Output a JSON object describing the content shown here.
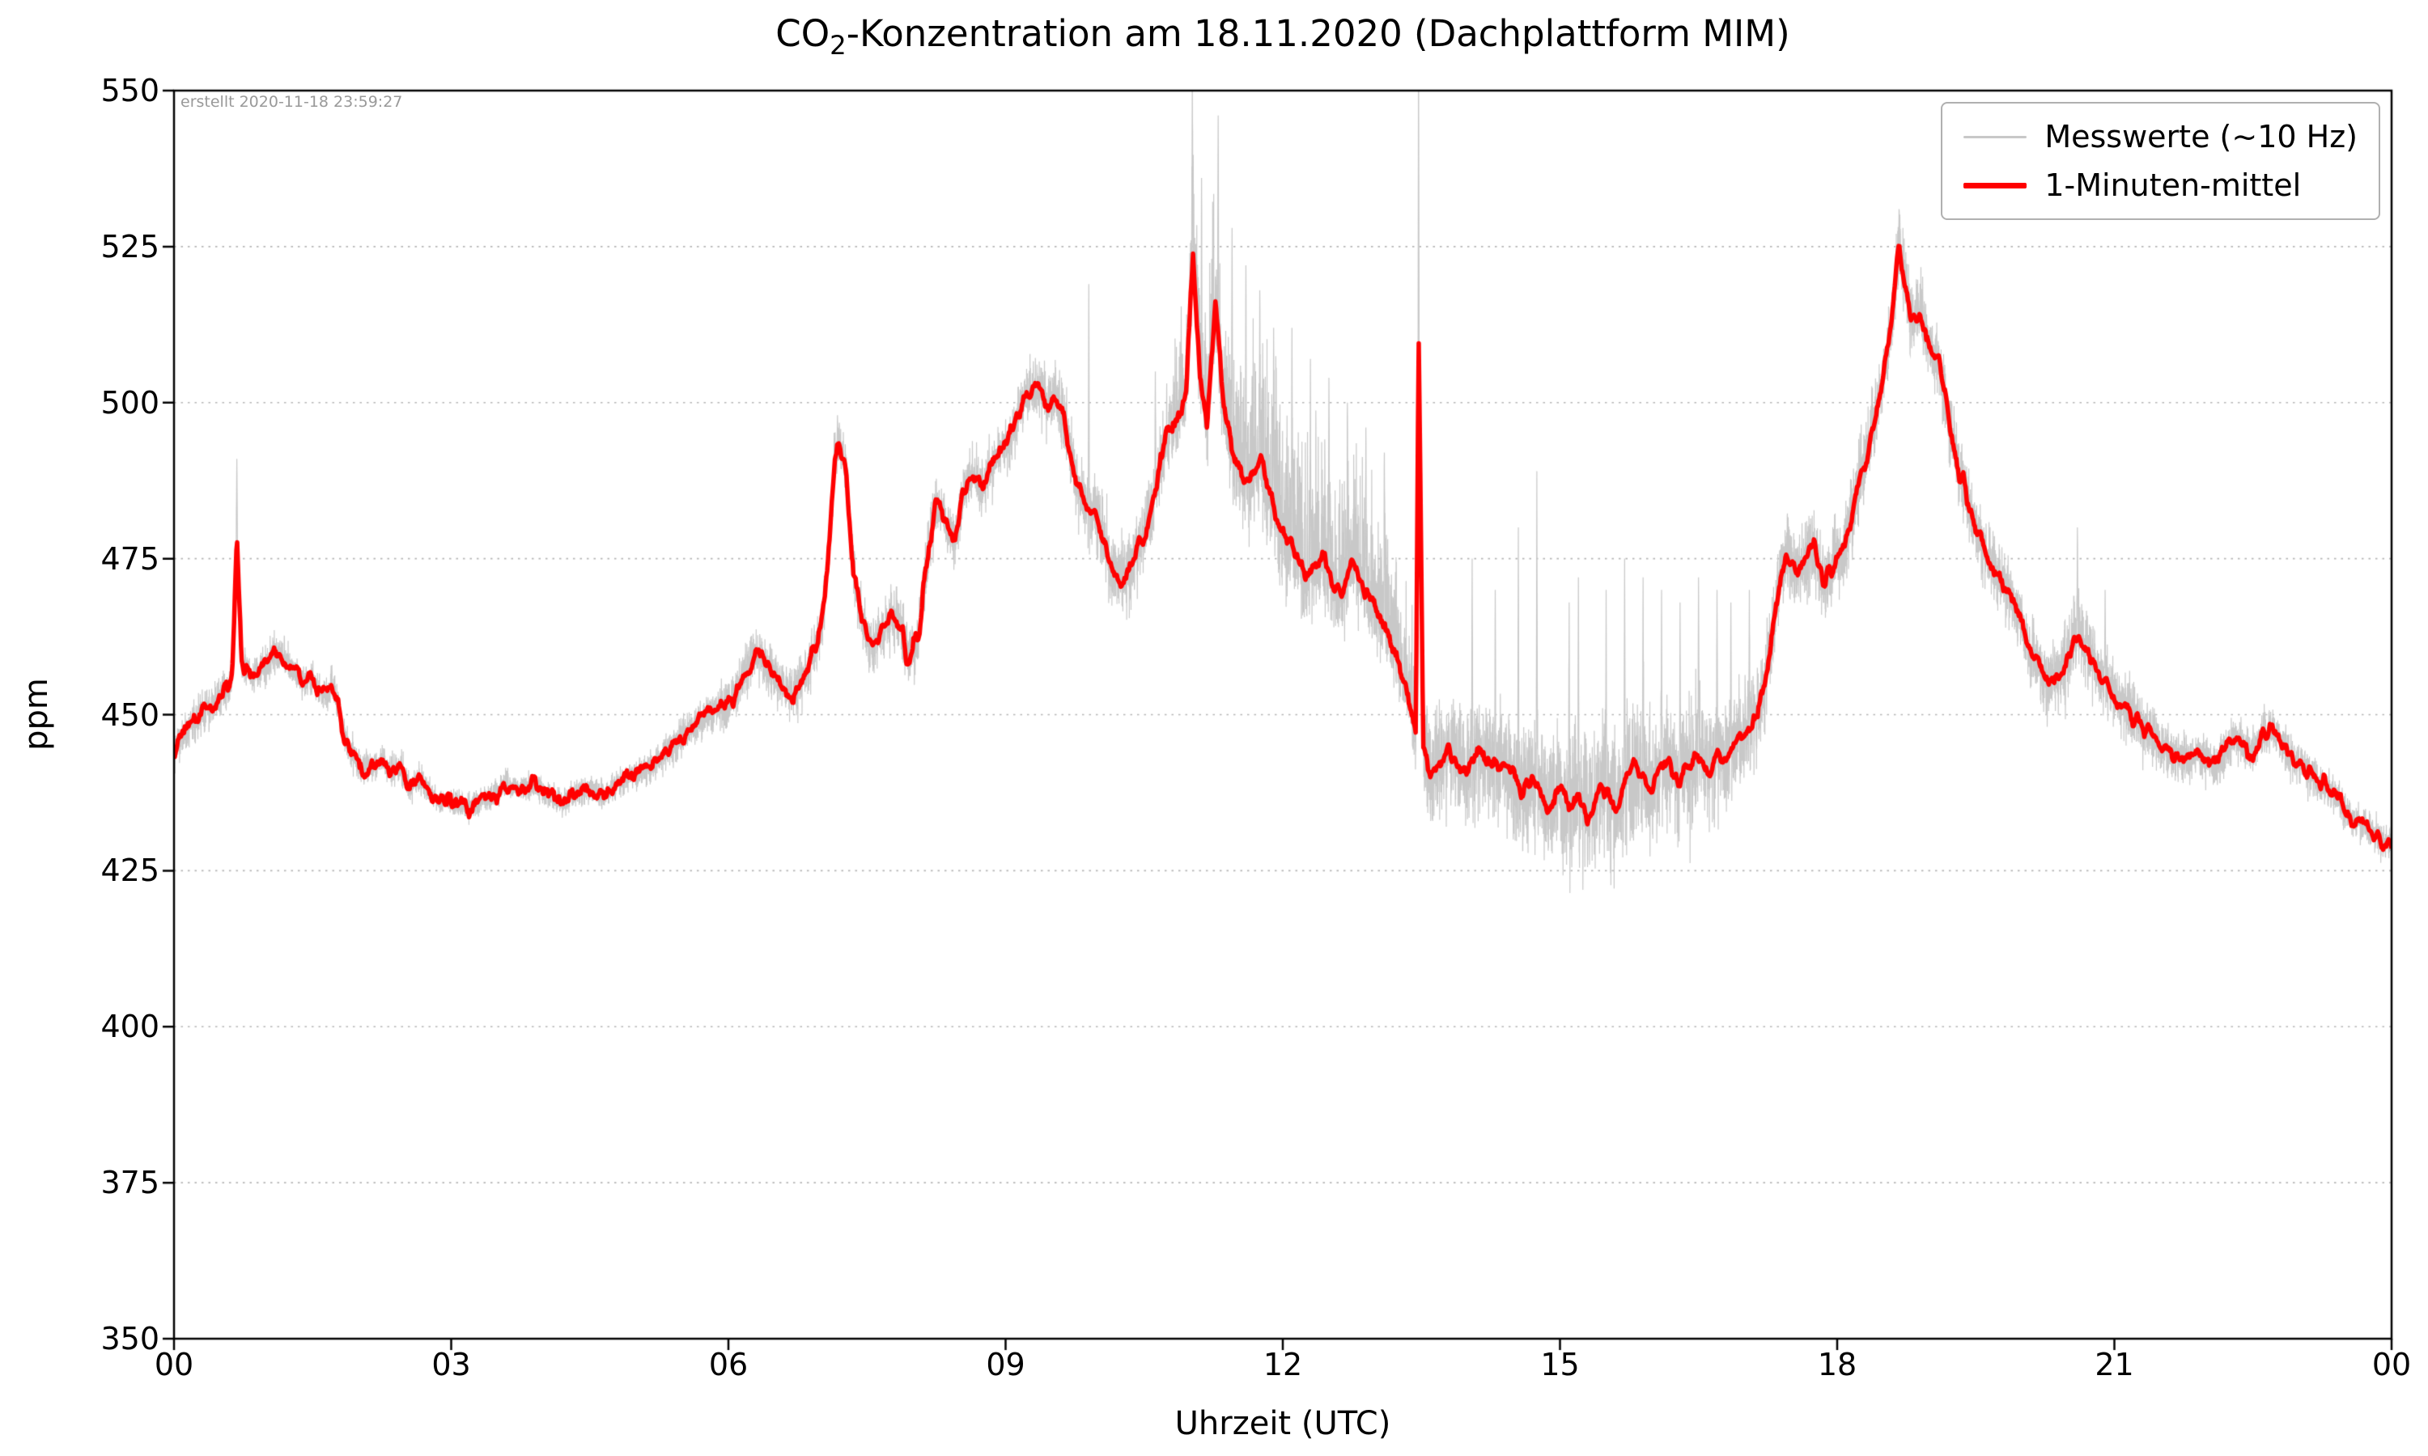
{
  "chart_data": {
    "type": "line",
    "title": "CO₂-Konzentration am 18.11.2020 (Dachplattform MIM)",
    "title_parts": {
      "prefix": "CO",
      "sub": "2",
      "rest": "-Konzentration am 18.11.2020 (Dachplattform MIM)"
    },
    "xlabel": "Uhrzeit (UTC)",
    "ylabel": "ppm",
    "annotation": "erstellt 2020-11-18 23:59:27",
    "xlim": [
      0,
      24
    ],
    "ylim": [
      350,
      550
    ],
    "xticks": {
      "values": [
        0,
        3,
        6,
        9,
        12,
        15,
        18,
        21,
        24
      ],
      "labels": [
        "00",
        "03",
        "06",
        "09",
        "12",
        "15",
        "18",
        "21",
        "00"
      ]
    },
    "yticks": {
      "values": [
        350,
        375,
        400,
        425,
        450,
        475,
        500,
        525,
        550
      ],
      "labels": [
        "350",
        "375",
        "400",
        "425",
        "450",
        "475",
        "500",
        "525",
        "550"
      ]
    },
    "grid": {
      "axis": "y",
      "style": "dotted",
      "color": "#b5b5b5"
    },
    "legend": {
      "position": "upper right"
    },
    "series": [
      {
        "name": "Messwerte (~10 Hz)",
        "color": "#c8c8c8",
        "width": 1.2,
        "role": "raw"
      },
      {
        "name": "1-Minuten-mittel",
        "color": "#ff0000",
        "width": 5.5,
        "role": "mean"
      }
    ],
    "mean_ppm": [
      [
        0.0,
        444
      ],
      [
        0.15,
        448
      ],
      [
        0.3,
        450
      ],
      [
        0.45,
        452
      ],
      [
        0.55,
        454
      ],
      [
        0.63,
        456
      ],
      [
        0.68,
        480
      ],
      [
        0.73,
        458
      ],
      [
        0.85,
        456
      ],
      [
        1.0,
        458
      ],
      [
        1.1,
        460
      ],
      [
        1.2,
        459
      ],
      [
        1.3,
        457
      ],
      [
        1.4,
        455
      ],
      [
        1.5,
        456
      ],
      [
        1.6,
        453
      ],
      [
        1.7,
        455
      ],
      [
        1.78,
        452
      ],
      [
        1.85,
        446
      ],
      [
        1.95,
        443
      ],
      [
        2.05,
        441
      ],
      [
        2.15,
        442
      ],
      [
        2.25,
        443
      ],
      [
        2.35,
        441
      ],
      [
        2.45,
        442
      ],
      [
        2.55,
        438
      ],
      [
        2.65,
        440
      ],
      [
        2.75,
        438
      ],
      [
        2.85,
        436
      ],
      [
        3.0,
        436
      ],
      [
        3.15,
        435
      ],
      [
        3.3,
        436
      ],
      [
        3.45,
        437
      ],
      [
        3.6,
        439
      ],
      [
        3.75,
        438
      ],
      [
        3.9,
        439
      ],
      [
        4.05,
        437
      ],
      [
        4.2,
        436
      ],
      [
        4.35,
        437
      ],
      [
        4.5,
        438
      ],
      [
        4.65,
        437
      ],
      [
        4.8,
        439
      ],
      [
        4.95,
        440
      ],
      [
        5.1,
        441
      ],
      [
        5.25,
        443
      ],
      [
        5.4,
        445
      ],
      [
        5.55,
        447
      ],
      [
        5.7,
        449
      ],
      [
        5.85,
        451
      ],
      [
        6.0,
        452
      ],
      [
        6.1,
        454
      ],
      [
        6.2,
        457
      ],
      [
        6.3,
        460
      ],
      [
        6.4,
        458
      ],
      [
        6.5,
        456
      ],
      [
        6.6,
        454
      ],
      [
        6.7,
        453
      ],
      [
        6.8,
        455
      ],
      [
        6.9,
        459
      ],
      [
        7.0,
        463
      ],
      [
        7.08,
        475
      ],
      [
        7.15,
        490
      ],
      [
        7.2,
        494
      ],
      [
        7.28,
        488
      ],
      [
        7.35,
        473
      ],
      [
        7.45,
        465
      ],
      [
        7.55,
        461
      ],
      [
        7.65,
        463
      ],
      [
        7.75,
        466
      ],
      [
        7.85,
        465
      ],
      [
        7.95,
        459
      ],
      [
        8.05,
        462
      ],
      [
        8.15,
        475
      ],
      [
        8.25,
        484
      ],
      [
        8.35,
        481
      ],
      [
        8.45,
        478
      ],
      [
        8.55,
        486
      ],
      [
        8.65,
        489
      ],
      [
        8.75,
        486
      ],
      [
        8.85,
        490
      ],
      [
        8.95,
        492
      ],
      [
        9.05,
        494
      ],
      [
        9.15,
        499
      ],
      [
        9.25,
        502
      ],
      [
        9.35,
        503
      ],
      [
        9.45,
        500
      ],
      [
        9.55,
        501
      ],
      [
        9.65,
        496
      ],
      [
        9.75,
        488
      ],
      [
        9.85,
        484
      ],
      [
        9.95,
        483
      ],
      [
        10.05,
        479
      ],
      [
        10.15,
        473
      ],
      [
        10.25,
        471
      ],
      [
        10.35,
        474
      ],
      [
        10.45,
        477
      ],
      [
        10.55,
        481
      ],
      [
        10.65,
        488
      ],
      [
        10.75,
        495
      ],
      [
        10.85,
        497
      ],
      [
        10.95,
        501
      ],
      [
        11.03,
        524
      ],
      [
        11.1,
        505
      ],
      [
        11.18,
        496
      ],
      [
        11.27,
        516
      ],
      [
        11.35,
        500
      ],
      [
        11.45,
        492
      ],
      [
        11.55,
        488
      ],
      [
        11.65,
        488
      ],
      [
        11.75,
        491
      ],
      [
        11.85,
        486
      ],
      [
        11.95,
        481
      ],
      [
        12.05,
        478
      ],
      [
        12.15,
        475
      ],
      [
        12.25,
        472
      ],
      [
        12.35,
        474
      ],
      [
        12.45,
        476
      ],
      [
        12.55,
        471
      ],
      [
        12.65,
        470
      ],
      [
        12.75,
        475
      ],
      [
        12.85,
        471
      ],
      [
        12.95,
        468
      ],
      [
        13.05,
        466
      ],
      [
        13.15,
        462
      ],
      [
        13.25,
        458
      ],
      [
        13.35,
        453
      ],
      [
        13.44,
        448
      ],
      [
        13.47,
        510
      ],
      [
        13.52,
        444
      ],
      [
        13.6,
        441
      ],
      [
        13.7,
        442
      ],
      [
        13.8,
        444
      ],
      [
        13.9,
        442
      ],
      [
        14.0,
        441
      ],
      [
        14.1,
        444
      ],
      [
        14.2,
        443
      ],
      [
        14.3,
        441
      ],
      [
        14.4,
        443
      ],
      [
        14.5,
        440
      ],
      [
        14.6,
        438
      ],
      [
        14.7,
        440
      ],
      [
        14.8,
        437
      ],
      [
        14.9,
        435
      ],
      [
        15.0,
        438
      ],
      [
        15.1,
        435
      ],
      [
        15.2,
        437
      ],
      [
        15.3,
        434
      ],
      [
        15.4,
        437
      ],
      [
        15.5,
        438
      ],
      [
        15.6,
        435
      ],
      [
        15.7,
        439
      ],
      [
        15.8,
        442
      ],
      [
        15.9,
        440
      ],
      [
        16.0,
        438
      ],
      [
        16.1,
        441
      ],
      [
        16.2,
        442
      ],
      [
        16.3,
        439
      ],
      [
        16.4,
        442
      ],
      [
        16.5,
        444
      ],
      [
        16.6,
        441
      ],
      [
        16.7,
        444
      ],
      [
        16.8,
        443
      ],
      [
        16.9,
        446
      ],
      [
        17.0,
        447
      ],
      [
        17.1,
        449
      ],
      [
        17.2,
        453
      ],
      [
        17.3,
        463
      ],
      [
        17.38,
        471
      ],
      [
        17.45,
        476
      ],
      [
        17.55,
        472
      ],
      [
        17.65,
        475
      ],
      [
        17.75,
        477
      ],
      [
        17.85,
        471
      ],
      [
        17.95,
        474
      ],
      [
        18.05,
        476
      ],
      [
        18.15,
        481
      ],
      [
        18.25,
        488
      ],
      [
        18.35,
        494
      ],
      [
        18.45,
        501
      ],
      [
        18.55,
        509
      ],
      [
        18.62,
        518
      ],
      [
        18.67,
        525
      ],
      [
        18.72,
        520
      ],
      [
        18.8,
        513
      ],
      [
        18.9,
        515
      ],
      [
        19.0,
        509
      ],
      [
        19.1,
        506
      ],
      [
        19.2,
        498
      ],
      [
        19.3,
        490
      ],
      [
        19.4,
        485
      ],
      [
        19.5,
        480
      ],
      [
        19.6,
        476
      ],
      [
        19.7,
        473
      ],
      [
        19.8,
        471
      ],
      [
        19.9,
        468
      ],
      [
        20.0,
        465
      ],
      [
        20.1,
        460
      ],
      [
        20.2,
        457
      ],
      [
        20.3,
        455
      ],
      [
        20.4,
        456
      ],
      [
        20.5,
        459
      ],
      [
        20.6,
        463
      ],
      [
        20.7,
        461
      ],
      [
        20.8,
        457
      ],
      [
        20.9,
        455
      ],
      [
        21.0,
        453
      ],
      [
        21.1,
        452
      ],
      [
        21.2,
        450
      ],
      [
        21.3,
        448
      ],
      [
        21.4,
        447
      ],
      [
        21.5,
        445
      ],
      [
        21.6,
        444
      ],
      [
        21.7,
        443
      ],
      [
        21.8,
        443
      ],
      [
        21.9,
        444
      ],
      [
        22.0,
        443
      ],
      [
        22.1,
        442
      ],
      [
        22.2,
        444
      ],
      [
        22.3,
        446
      ],
      [
        22.4,
        445
      ],
      [
        22.5,
        444
      ],
      [
        22.6,
        447
      ],
      [
        22.7,
        448
      ],
      [
        22.8,
        446
      ],
      [
        22.9,
        443
      ],
      [
        23.0,
        442
      ],
      [
        23.1,
        441
      ],
      [
        23.2,
        439
      ],
      [
        23.3,
        438
      ],
      [
        23.4,
        437
      ],
      [
        23.5,
        435
      ],
      [
        23.6,
        433
      ],
      [
        23.7,
        432
      ],
      [
        23.8,
        431
      ],
      [
        23.9,
        430
      ],
      [
        24.0,
        429
      ]
    ],
    "raw_noise_envelope": [
      [
        0,
        4
      ],
      [
        0.5,
        5
      ],
      [
        1,
        4
      ],
      [
        2,
        3.5
      ],
      [
        3,
        3
      ],
      [
        4,
        3
      ],
      [
        5,
        3.5
      ],
      [
        6,
        5
      ],
      [
        6.5,
        6
      ],
      [
        7,
        6
      ],
      [
        7.5,
        6
      ],
      [
        8,
        7
      ],
      [
        8.5,
        6
      ],
      [
        9,
        6
      ],
      [
        9.5,
        7
      ],
      [
        10,
        9
      ],
      [
        10.5,
        8
      ],
      [
        11,
        12
      ],
      [
        11.3,
        16
      ],
      [
        11.6,
        18
      ],
      [
        12,
        18
      ],
      [
        12.5,
        16
      ],
      [
        13,
        14
      ],
      [
        13.5,
        13
      ],
      [
        14,
        12
      ],
      [
        14.5,
        14
      ],
      [
        15,
        16
      ],
      [
        15.5,
        16
      ],
      [
        16,
        15
      ],
      [
        16.5,
        14
      ],
      [
        17,
        11
      ],
      [
        17.5,
        9
      ],
      [
        18,
        9
      ],
      [
        18.5,
        8
      ],
      [
        19,
        8
      ],
      [
        19.5,
        7
      ],
      [
        20,
        8
      ],
      [
        20.5,
        9
      ],
      [
        21,
        7
      ],
      [
        21.5,
        6
      ],
      [
        22,
        5
      ],
      [
        22.5,
        5
      ],
      [
        23,
        5
      ],
      [
        23.5,
        4
      ],
      [
        24,
        4
      ]
    ],
    "raw_spikes": [
      [
        0.68,
        491
      ],
      [
        7.18,
        498
      ],
      [
        9.9,
        519
      ],
      [
        10.62,
        505
      ],
      [
        11.02,
        552
      ],
      [
        11.12,
        536
      ],
      [
        11.3,
        546
      ],
      [
        11.45,
        528
      ],
      [
        11.6,
        522
      ],
      [
        11.75,
        518
      ],
      [
        11.9,
        512
      ],
      [
        12.1,
        512
      ],
      [
        12.3,
        507
      ],
      [
        12.5,
        504
      ],
      [
        12.7,
        500
      ],
      [
        12.9,
        496
      ],
      [
        13.1,
        492
      ],
      [
        13.47,
        557
      ],
      [
        14.05,
        475
      ],
      [
        14.3,
        470
      ],
      [
        14.55,
        480
      ],
      [
        14.75,
        489
      ],
      [
        15.1,
        468
      ],
      [
        15.2,
        472
      ],
      [
        15.5,
        470
      ],
      [
        15.7,
        475
      ],
      [
        15.9,
        472
      ],
      [
        16.1,
        470
      ],
      [
        16.3,
        468
      ],
      [
        16.5,
        472
      ],
      [
        16.7,
        470
      ],
      [
        16.85,
        468
      ],
      [
        17.05,
        470
      ],
      [
        18.67,
        531
      ],
      [
        20.6,
        480
      ],
      [
        20.9,
        470
      ]
    ],
    "raw_skew_up_window": [
      10.8,
      13.4
    ]
  }
}
